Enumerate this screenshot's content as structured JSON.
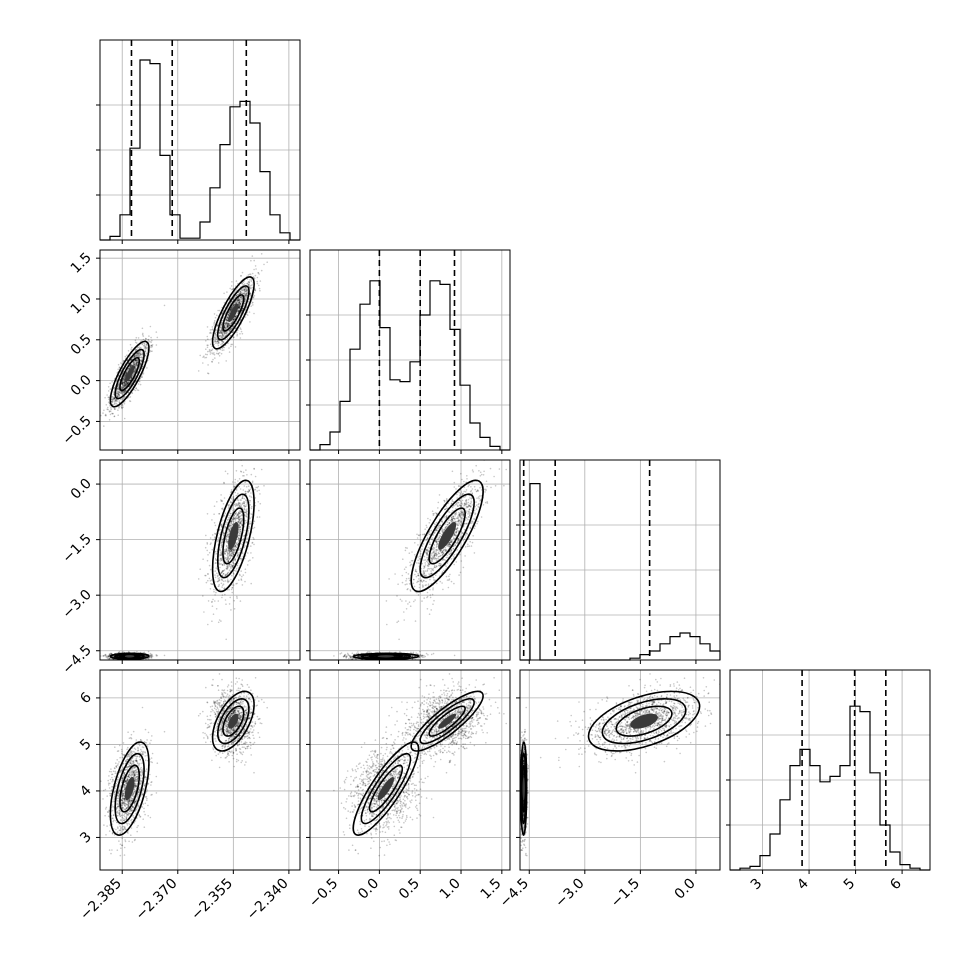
{
  "chart_data": {
    "type": "corner",
    "parameters": [
      {
        "ticks": [
          -2.385,
          -2.37,
          -2.355,
          -2.34
        ],
        "tick_labels": [
          "−2.385",
          "−2.370",
          "−2.355",
          "−2.340"
        ],
        "range": [
          -2.391,
          -2.337
        ],
        "quantiles": [
          -2.3825,
          -2.3715,
          -2.3515
        ]
      },
      {
        "ticks": [
          -0.5,
          0.0,
          0.5,
          1.0,
          1.5
        ],
        "tick_labels": [
          "−0.5",
          "0.0",
          "0.5",
          "1.0",
          "1.5"
        ],
        "range": [
          -0.85,
          1.6
        ],
        "quantiles": [
          0.0,
          0.5,
          0.92
        ]
      },
      {
        "ticks": [
          -4.5,
          -3.0,
          -1.5,
          0.0
        ],
        "tick_labels": [
          "−4.5",
          "−3.0",
          "−1.5",
          "0.0"
        ],
        "range": [
          -4.75,
          0.65
        ],
        "quantiles": [
          -4.65,
          -3.8,
          -1.25
        ]
      },
      {
        "ticks": [
          3,
          4,
          5,
          6
        ],
        "tick_labels": [
          "3",
          "4",
          "5",
          "6"
        ],
        "range": [
          2.3,
          6.6
        ],
        "quantiles": [
          3.85,
          4.98,
          5.65
        ]
      }
    ],
    "histograms": [
      {
        "bins": 20,
        "values": [
          0,
          0.02,
          0.14,
          0.51,
          1.0,
          0.98,
          0.47,
          0.14,
          0.01,
          0.01,
          0.1,
          0.29,
          0.53,
          0.74,
          0.77,
          0.65,
          0.38,
          0.14,
          0.04,
          0
        ]
      },
      {
        "bins": 20,
        "values": [
          0,
          0.03,
          0.1,
          0.27,
          0.56,
          0.81,
          0.94,
          0.68,
          0.39,
          0.38,
          0.49,
          0.75,
          0.94,
          0.92,
          0.67,
          0.36,
          0.15,
          0.07,
          0.02,
          0
        ]
      },
      {
        "bins": 20,
        "values": [
          0,
          0.98,
          0,
          0,
          0,
          0,
          0,
          0,
          0,
          0,
          0,
          0.01,
          0.03,
          0.05,
          0.09,
          0.13,
          0.15,
          0.13,
          0.09,
          0.05
        ]
      },
      {
        "bins": 20,
        "values": [
          0,
          0.01,
          0.02,
          0.08,
          0.2,
          0.39,
          0.58,
          0.67,
          0.58,
          0.49,
          0.52,
          0.58,
          0.91,
          0.88,
          0.54,
          0.25,
          0.1,
          0.03,
          0.01,
          0
        ]
      }
    ],
    "modes": [
      {
        "weight": 0.5,
        "mean": [
          -2.383,
          0.08,
          -4.65,
          4.05
        ],
        "sd": [
          0.0026,
          0.2,
          0.04,
          0.5
        ]
      },
      {
        "weight": 0.5,
        "mean": [
          -2.355,
          0.83,
          -1.4,
          5.5
        ],
        "sd": [
          0.0028,
          0.22,
          0.75,
          0.32
        ]
      }
    ],
    "contour_levels": [
      0.118,
      0.393,
      0.675,
      0.865
    ],
    "grid": true
  }
}
